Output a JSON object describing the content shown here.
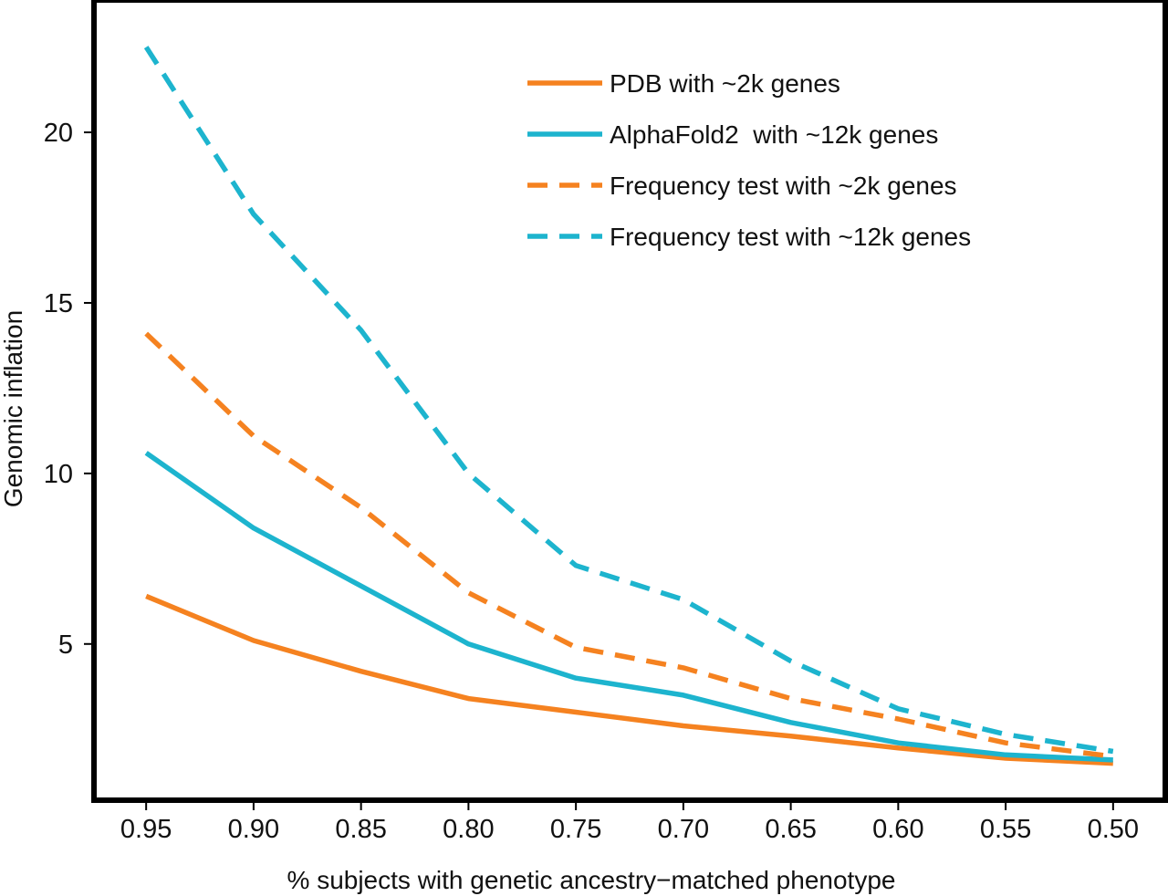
{
  "chart_data": {
    "type": "line",
    "title": "",
    "xlabel": "% subjects with genetic ancestry−matched phenotype",
    "ylabel": "Genomic inflation",
    "x": [
      0.95,
      0.9,
      0.85,
      0.8,
      0.75,
      0.7,
      0.65,
      0.6,
      0.55,
      0.5
    ],
    "x_tick_labels": [
      "0.95",
      "0.90",
      "0.85",
      "0.80",
      "0.75",
      "0.70",
      "0.65",
      "0.60",
      "0.55",
      "0.50"
    ],
    "xlim": [
      0.973,
      0.477
    ],
    "x_reversed": true,
    "y_ticks": [
      5,
      10,
      15,
      20
    ],
    "y_tick_labels": [
      "5",
      "10",
      "15",
      "20"
    ],
    "ylim": [
      0.5,
      23.8
    ],
    "grid": false,
    "legend_position": "top-right",
    "series": [
      {
        "name": "PDB with ~2k genes",
        "color": "#F58220",
        "dash": "solid",
        "values": [
          6.4,
          5.1,
          4.2,
          3.4,
          3.0,
          2.6,
          2.3,
          1.95,
          1.65,
          1.5
        ]
      },
      {
        "name": "AlphaFold2  with ~12k genes",
        "color": "#1DB4CE",
        "dash": "solid",
        "values": [
          10.6,
          8.4,
          6.7,
          5.0,
          4.0,
          3.5,
          2.7,
          2.1,
          1.75,
          1.6
        ]
      },
      {
        "name": "Frequency test with ~2k genes",
        "color": "#F58220",
        "dash": "dashed",
        "values": [
          14.1,
          11.1,
          9.0,
          6.5,
          4.9,
          4.3,
          3.4,
          2.8,
          2.1,
          1.7
        ]
      },
      {
        "name": "Frequency test with ~12k genes",
        "color": "#1DB4CE",
        "dash": "dashed",
        "values": [
          22.5,
          17.6,
          14.2,
          10.0,
          7.3,
          6.3,
          4.5,
          3.1,
          2.35,
          1.85
        ]
      }
    ]
  }
}
